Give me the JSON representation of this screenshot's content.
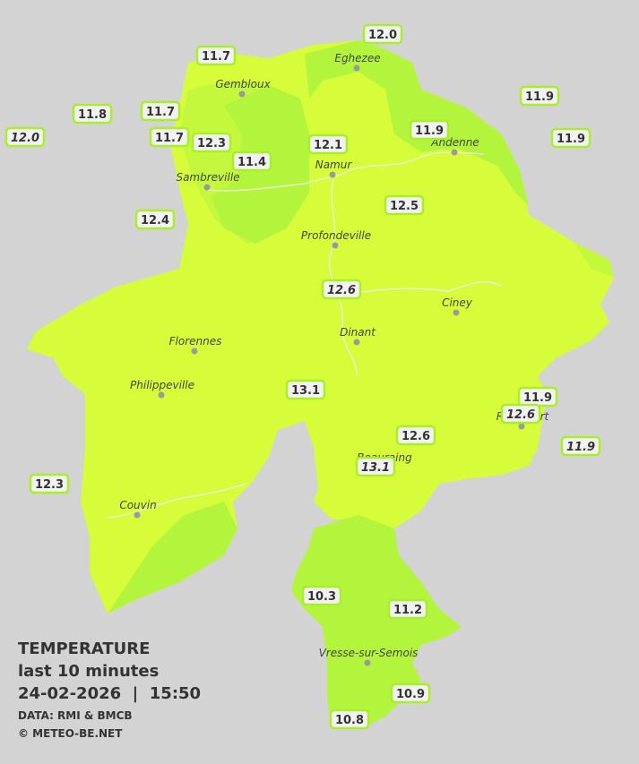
{
  "stations": [
    {
      "temperature": "12.0"
    },
    {
      "temperature": "11.7"
    },
    {
      "temperature": "11.9"
    },
    {
      "temperature": "11.8"
    },
    {
      "temperature": "11.7"
    },
    {
      "temperature": "12.0",
      "italic": true
    },
    {
      "temperature": "11.7"
    },
    {
      "temperature": "12.3"
    },
    {
      "temperature": "11.9"
    },
    {
      "temperature": "11.9"
    },
    {
      "temperature": "12.1"
    },
    {
      "temperature": "11.4"
    },
    {
      "temperature": "12.5"
    },
    {
      "temperature": "12.4"
    },
    {
      "temperature": "12.6",
      "italic": true
    },
    {
      "temperature": "13.1"
    },
    {
      "temperature": "11.9"
    },
    {
      "temperature": "12.6",
      "italic": true
    },
    {
      "temperature": "12.6"
    },
    {
      "temperature": "11.9",
      "italic": true
    },
    {
      "temperature": "13.1",
      "italic": true
    },
    {
      "temperature": "12.3"
    },
    {
      "temperature": "10.3"
    },
    {
      "temperature": "11.2"
    },
    {
      "temperature": "10.9"
    },
    {
      "temperature": "10.8"
    }
  ],
  "towns": [
    "Eghezee",
    "Gembloux",
    "Andenne",
    "Namur",
    "Sambreville",
    "Profondeville",
    "Ciney",
    "Dinant",
    "Florennes",
    "Philippeville",
    "Rochefort",
    "Beauraing",
    "Couvin",
    "Vresse-sur-Semois"
  ],
  "legend": {
    "title": "TEMPERATURE",
    "period": "last 10 minutes",
    "timestamp": "24-02-2026  |  15:50",
    "source": "DATA: RMI & BMCB",
    "copyright": "© METEO-BE.NET"
  }
}
